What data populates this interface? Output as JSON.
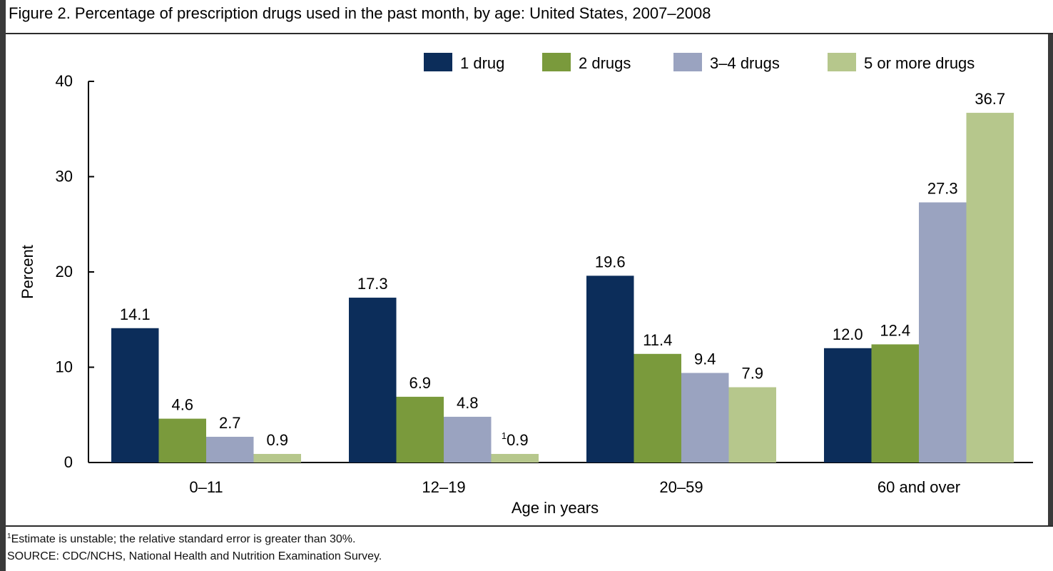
{
  "header": {
    "title": "Figure 2. Percentage of prescription drugs used in the past month, by age: United States, 2007–2008"
  },
  "footer": {
    "note_marker": "1",
    "note": "Estimate is unstable; the relative standard error is greater than 30%.",
    "source": "SOURCE: CDC/NCHS, National Health and Nutrition Examination Survey."
  },
  "chart_data": {
    "type": "bar",
    "title": "Figure 2. Percentage of prescription drugs used in the past month, by age: United States, 2007–2008",
    "xlabel": "Age in years",
    "ylabel": "Percent",
    "ylim": [
      0,
      40
    ],
    "yticks": [
      0,
      10,
      20,
      30,
      40
    ],
    "grid": false,
    "legend_position": "top-right",
    "categories": [
      "0–11",
      "12–19",
      "20–59",
      "60 and over"
    ],
    "series": [
      {
        "name": "1 drug",
        "color": "#0c2d5a",
        "values": [
          14.1,
          17.3,
          19.6,
          12.0
        ],
        "labels": [
          "14.1",
          "17.3",
          "19.6",
          "12.0"
        ]
      },
      {
        "name": "2 drugs",
        "color": "#7a9a3c",
        "values": [
          4.6,
          6.9,
          11.4,
          12.4
        ],
        "labels": [
          "4.6",
          "6.9",
          "11.4",
          "12.4"
        ]
      },
      {
        "name": "3–4 drugs",
        "color": "#9aa3c0",
        "values": [
          2.7,
          4.8,
          9.4,
          27.3
        ],
        "labels": [
          "2.7",
          "4.8",
          "9.4",
          "27.3"
        ]
      },
      {
        "name": "5 or more drugs",
        "color": "#b6c78c",
        "values": [
          0.9,
          0.9,
          7.9,
          36.7
        ],
        "labels": [
          "0.9",
          "0.9",
          "7.9",
          "36.7"
        ],
        "label_marks": [
          "",
          "1",
          "",
          ""
        ]
      }
    ]
  }
}
